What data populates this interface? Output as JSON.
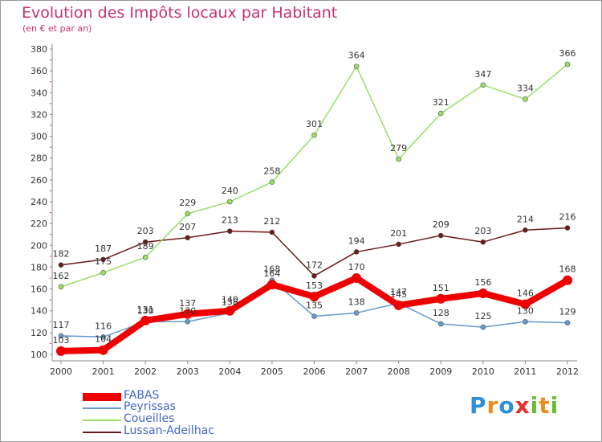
{
  "header": {
    "title": "Evolution des Impôts locaux par Habitant",
    "subtitle": "(en € et par an)"
  },
  "chart_data": {
    "type": "line",
    "title": "Evolution des Impôts locaux par Habitant",
    "subtitle": "(en € et par an)",
    "xlabel": "",
    "ylabel": "",
    "x": [
      "2000",
      "2001",
      "2002",
      "2003",
      "2004",
      "2005",
      "2006",
      "2007",
      "2008",
      "2009",
      "2010",
      "2011",
      "2012"
    ],
    "ylim": [
      100,
      380
    ],
    "yticks": [
      100,
      120,
      140,
      160,
      180,
      200,
      220,
      240,
      260,
      280,
      300,
      320,
      340,
      360,
      380
    ],
    "grid": false,
    "legend_position": "bottom-left",
    "series": [
      {
        "name": "Lussan-Adeilhac",
        "color": "#6b1a1a",
        "values": [
          182,
          187,
          203,
          207,
          213,
          212,
          172,
          194,
          201,
          209,
          203,
          214,
          216
        ]
      },
      {
        "name": "Coueilles",
        "color": "#99dd66",
        "values": [
          162,
          175,
          189,
          229,
          240,
          258,
          301,
          364,
          279,
          321,
          347,
          334,
          366
        ]
      },
      {
        "name": "Peyrissas",
        "color": "#6699cc",
        "values": [
          117,
          116,
          130,
          130,
          138,
          168,
          135,
          138,
          147,
          128,
          125,
          130,
          129
        ]
      },
      {
        "name": "FABAS",
        "color": "#ee0000",
        "values": [
          103,
          104,
          131,
          137,
          140,
          164,
          153,
          170,
          145,
          151,
          156,
          146,
          168
        ]
      }
    ]
  },
  "legend": {
    "items": [
      {
        "name": "FABAS",
        "color": "#ee0000",
        "thickness": 10
      },
      {
        "name": "Peyrissas",
        "color": "#6699cc",
        "thickness": 2
      },
      {
        "name": "Coueilles",
        "color": "#99dd66",
        "thickness": 2
      },
      {
        "name": "Lussan-Adeilhac",
        "color": "#6b1a1a",
        "thickness": 2
      }
    ]
  },
  "logo": {
    "letters": [
      "P",
      "r",
      "o",
      "x",
      "i",
      "t",
      "i"
    ],
    "colors": [
      "#2f8fd6",
      "#f08a1c",
      "#2f8fd6",
      "#e8302a",
      "#66bb33",
      "#f08a1c",
      "#66bb33"
    ]
  }
}
